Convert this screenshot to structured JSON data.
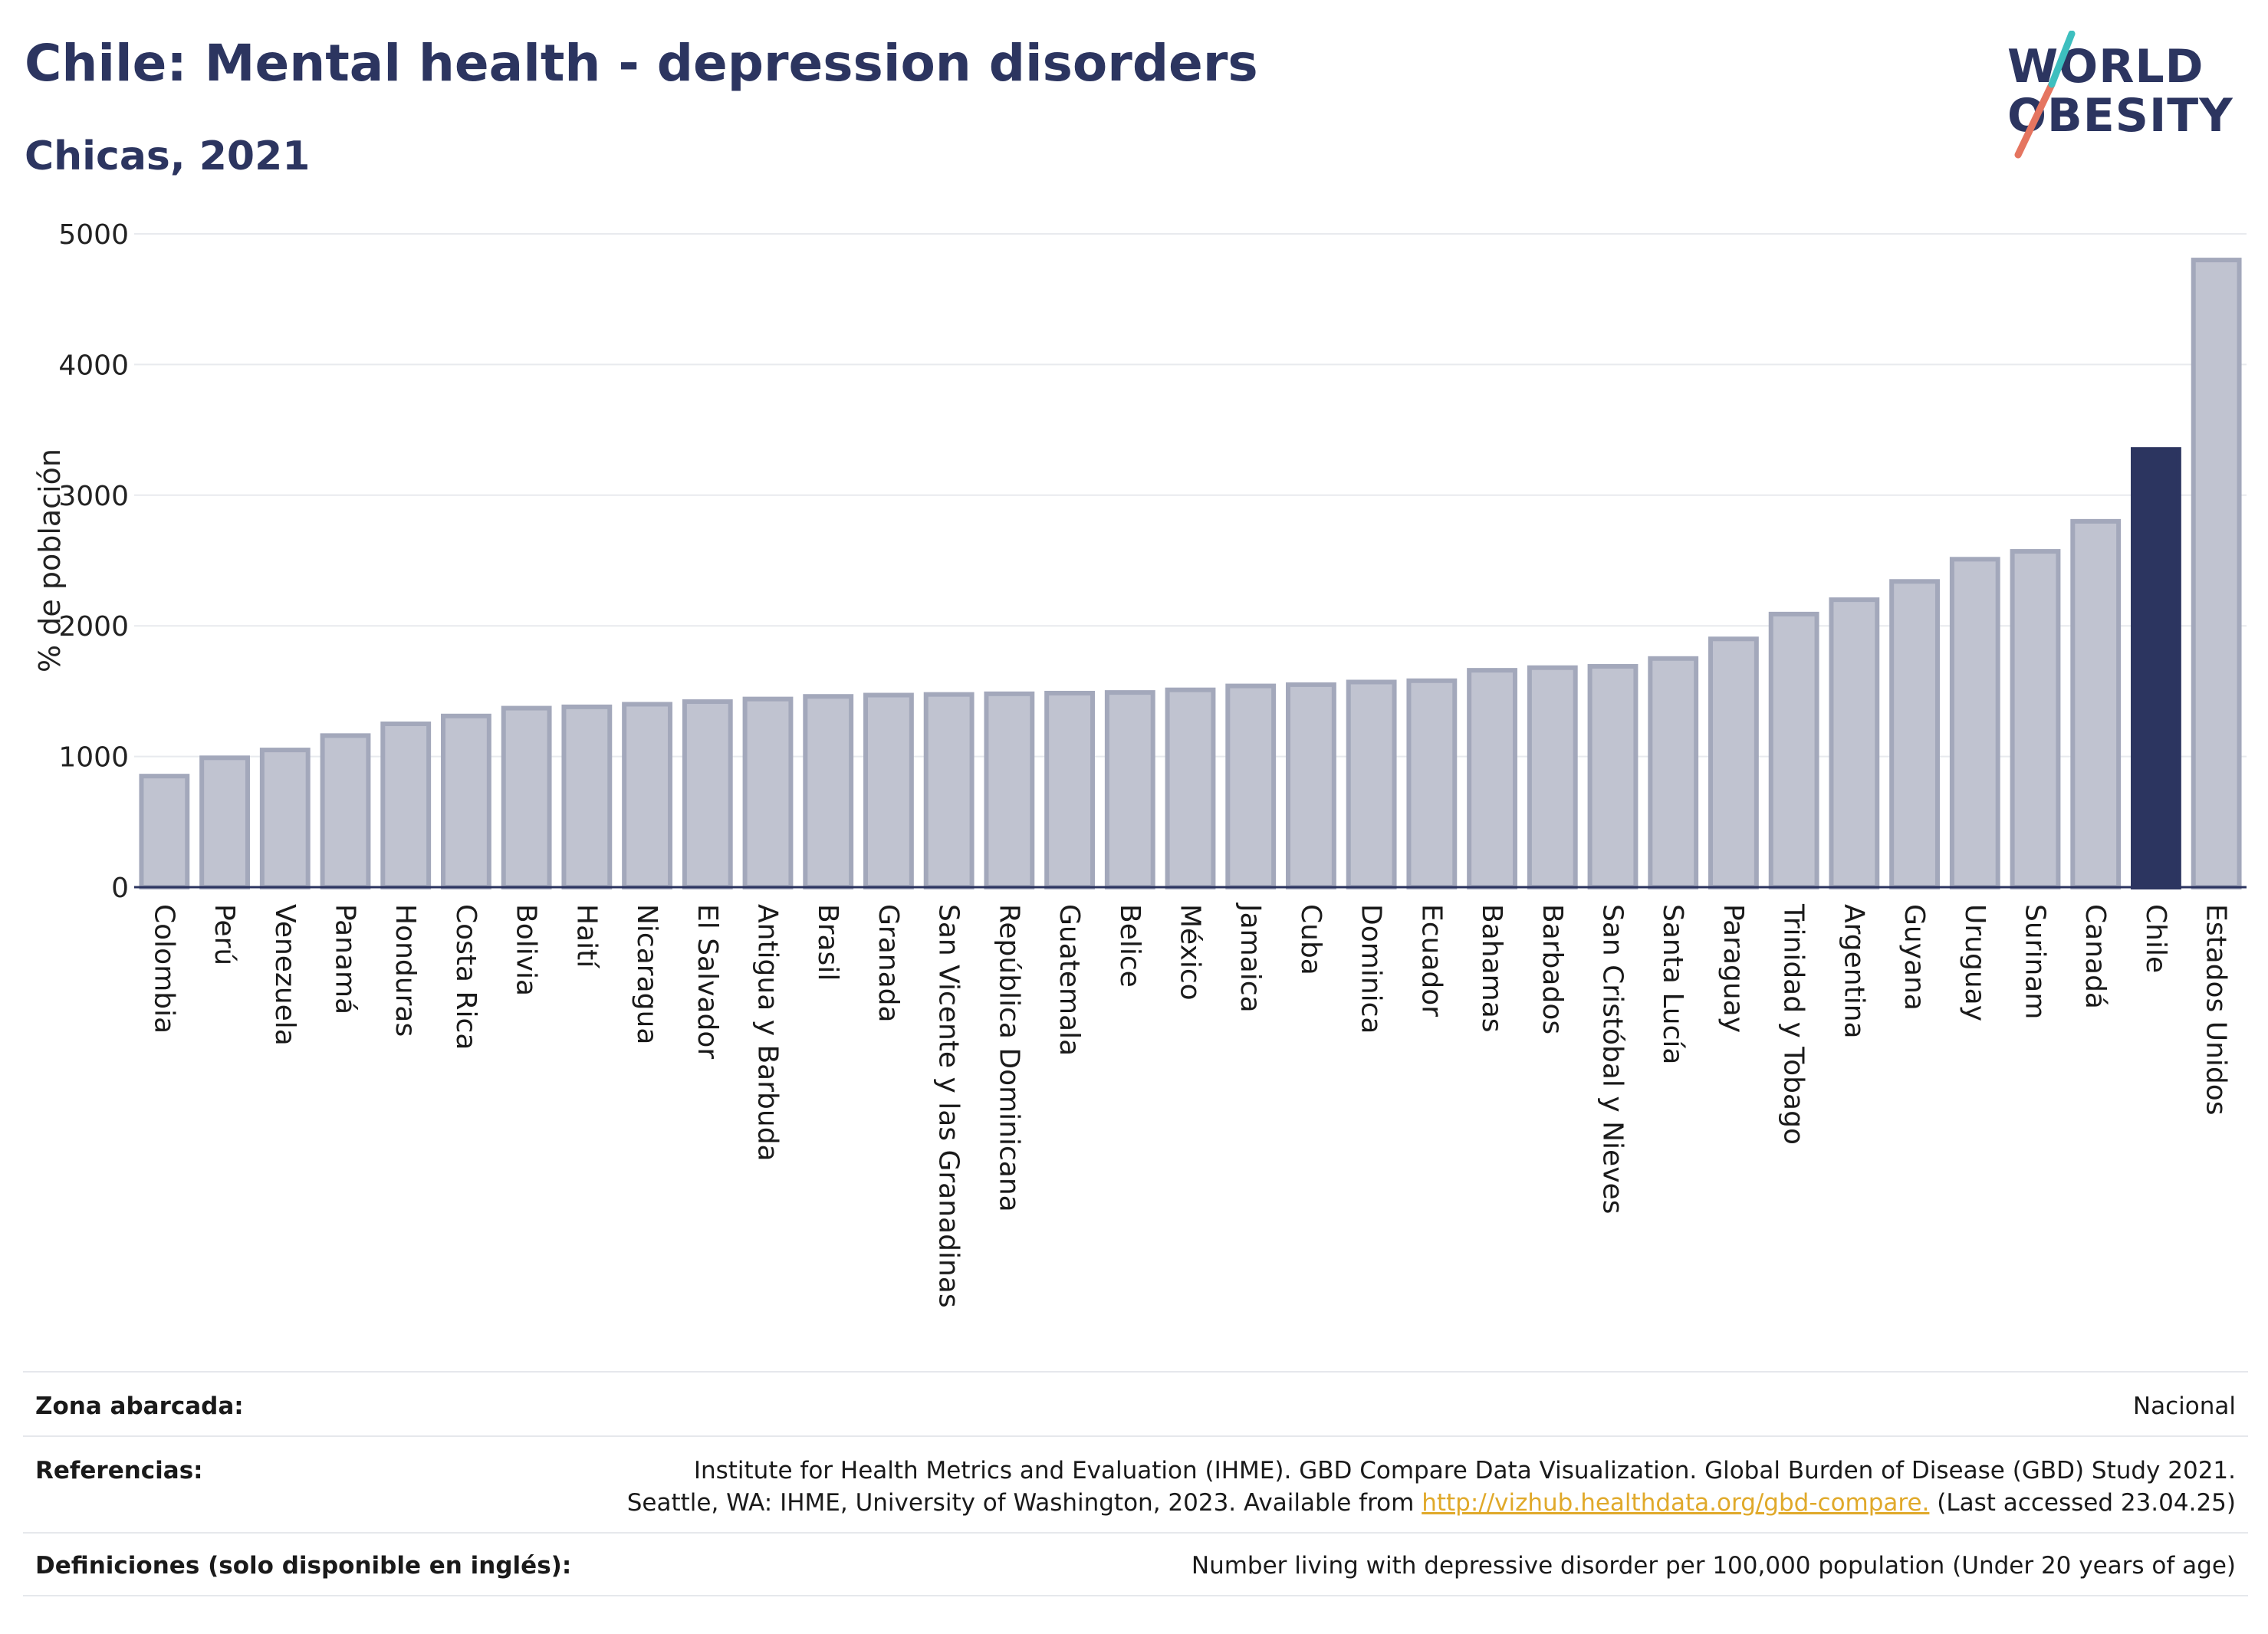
{
  "header": {
    "title": "Chile: Mental health - depression disorders",
    "subtitle": "Chicas, 2021"
  },
  "logo": {
    "line1": "WORLD",
    "line2": "OBESITY"
  },
  "chart_data": {
    "type": "bar",
    "ylabel": "% de población",
    "ylim": [
      0,
      5000
    ],
    "yticks": [
      0,
      1000,
      2000,
      3000,
      4000,
      5000
    ],
    "grid": true,
    "highlight": "Chile",
    "colors": {
      "bar": "#c0c3d0",
      "bar_border": "#a3a8bb",
      "highlight": "#2c3560"
    },
    "categories": [
      "Colombia",
      "Perú",
      "Venezuela",
      "Panamá",
      "Honduras",
      "Costa Rica",
      "Bolivia",
      "Haití",
      "Nicaragua",
      "El Salvador",
      "Antigua y Barbuda",
      "Brasil",
      "Granada",
      "San Vicente y las Granadinas",
      "República Dominicana",
      "Guatemala",
      "Belice",
      "México",
      "Jamaica",
      "Cuba",
      "Dominica",
      "Ecuador",
      "Bahamas",
      "Barbados",
      "San Cristóbal y Nieves",
      "Santa Lucía",
      "Paraguay",
      "Trinidad y Tobago",
      "Argentina",
      "Guyana",
      "Uruguay",
      "Surinam",
      "Canadá",
      "Chile",
      "Estados Unidos"
    ],
    "values": [
      850,
      990,
      1050,
      1160,
      1250,
      1310,
      1370,
      1380,
      1400,
      1420,
      1440,
      1460,
      1470,
      1475,
      1480,
      1485,
      1490,
      1510,
      1540,
      1550,
      1570,
      1580,
      1660,
      1680,
      1690,
      1750,
      1900,
      2090,
      2200,
      2340,
      2510,
      2570,
      2800,
      3350,
      4800
    ]
  },
  "footer": {
    "coverage_label": "Zona abarcada:",
    "coverage_value": "Nacional",
    "references_label": "Referencias:",
    "references_line1": "Institute for Health Metrics and Evaluation (IHME). GBD Compare Data Visualization. Global Burden of Disease (GBD) Study 2021.",
    "references_line2_pre": "Seattle, WA: IHME, University of Washington, 2023. Available from ",
    "references_link": "http://vizhub.healthdata.org/gbd-compare.",
    "references_line2_post": " (Last accessed 23.04.25)",
    "definitions_label": "Definiciones (solo disponible en inglés):",
    "definitions_value": "Number living with depressive disorder per 100,000 population (Under 20 years of age)"
  }
}
